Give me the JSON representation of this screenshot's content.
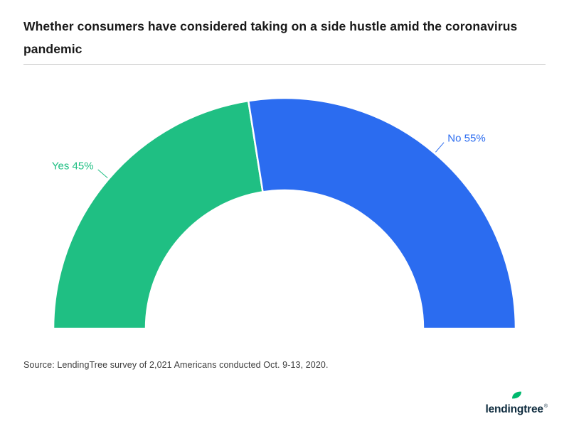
{
  "header": {
    "title": "Whether consumers have considered taking on a side hustle amid the coronavirus pandemic"
  },
  "chart_data": {
    "type": "pie",
    "subtype": "half-donut",
    "title": "Whether consumers have considered taking on a side hustle amid the coronavirus pandemic",
    "unit": "%",
    "start_angle_deg": 180,
    "end_angle_deg": 0,
    "inner_radius_ratio": 0.6,
    "legend": "none",
    "slices": [
      {
        "label": "Yes",
        "value": 45,
        "color": "#1fbf83",
        "data_label": "Yes 45%"
      },
      {
        "label": "No",
        "value": 55,
        "color": "#2b6cf0",
        "data_label": "No 55%"
      }
    ]
  },
  "footer": {
    "source": "Source: LendingTree survey of 2,021 Americans conducted Oct. 9-13, 2020.",
    "logo_text": "lendingtree",
    "logo_registered": "®"
  },
  "colors": {
    "yes_green": "#1fbf83",
    "no_blue": "#2b6cf0",
    "leaf_green": "#00b96e",
    "logo_navy": "#0e2b3e",
    "divider_gray": "#c9c9c9",
    "title_text": "#191919",
    "source_text": "#3c3c3c"
  }
}
